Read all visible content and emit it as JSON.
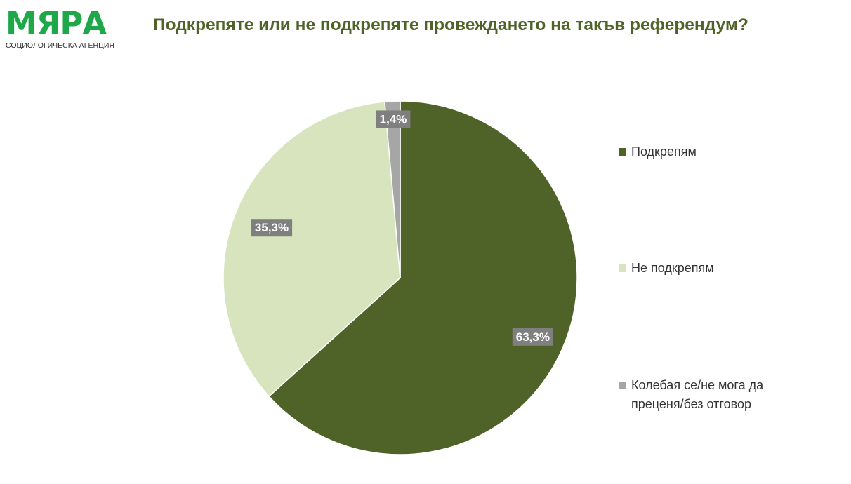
{
  "logo": {
    "name": "МЯРА",
    "subtitle": "СОЦИОЛОГИЧЕСКА АГЕНЦИЯ",
    "color": "#1ea84a"
  },
  "chart_data": {
    "type": "pie",
    "title": "Подкрепяте или не подкрепяте провеждането на такъв референдум?",
    "slices": [
      {
        "label": "Подкрепям",
        "value": 63.3,
        "display": "63,3%",
        "color": "#4f6328"
      },
      {
        "label": "Не подкрепям",
        "value": 35.3,
        "display": "35,3%",
        "color": "#d7e4bd"
      },
      {
        "label": "Колебая се/не мога да преценя/без отговор",
        "value": 1.4,
        "display": "1,4%",
        "color": "#a6a6a6"
      }
    ],
    "start_angle_deg": 0,
    "direction": "clockwise",
    "label_background": "#7f7f7f",
    "legend_position": "right"
  }
}
